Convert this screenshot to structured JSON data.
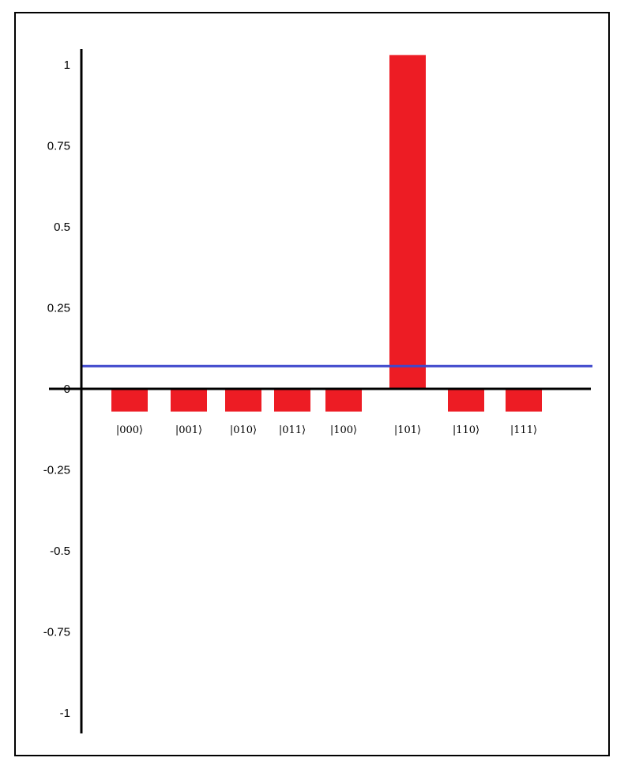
{
  "chart_data": {
    "type": "bar",
    "title": "",
    "xlabel": "",
    "ylabel": "",
    "categories": [
      "|000⟩",
      "|001⟩",
      "|010⟩",
      "|011⟩",
      "|100⟩",
      "|101⟩",
      "|110⟩",
      "|111⟩"
    ],
    "values": [
      -0.07,
      -0.07,
      -0.07,
      -0.07,
      -0.07,
      1.03,
      -0.07,
      -0.07
    ],
    "ylim": [
      -1,
      1
    ],
    "yticks": [
      "1",
      "0.75",
      "0.5",
      "0.25",
      "0",
      "-0.25",
      "-0.5",
      "-0.75",
      "-1"
    ],
    "reference_line": {
      "value": 0.07
    },
    "grid": false,
    "legend": "none",
    "colors": {
      "bar": "#ed1c24",
      "reference_line": "#3f48cc",
      "axis": "#000000"
    }
  }
}
